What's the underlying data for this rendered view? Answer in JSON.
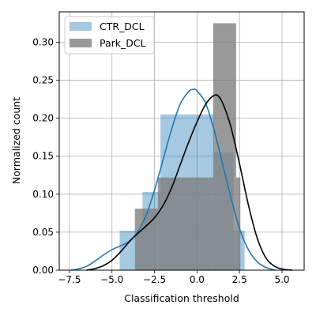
{
  "chart_data": {
    "type": "bar",
    "title": "",
    "xlabel": "Classification threshold",
    "ylabel": "Normalized count",
    "xlim": [
      -8.1,
      6.3
    ],
    "ylim": [
      0,
      0.34
    ],
    "grid": true,
    "legend_position": "top-left",
    "xticks": [
      -7.5,
      -5.0,
      -2.5,
      0.0,
      2.5,
      5.0
    ],
    "xtick_labels": [
      "−7.5",
      "−5.0",
      "−2.5",
      "0.0",
      "2.5",
      "5.0"
    ],
    "yticks": [
      0.0,
      0.05,
      0.1,
      0.15,
      0.2,
      0.25,
      0.3
    ],
    "ytick_labels": [
      "0.00",
      "0.05",
      "0.10",
      "0.15",
      "0.20",
      "0.25",
      "0.30"
    ],
    "series": [
      {
        "name": "CTR_DCL",
        "color": "#1f77b4",
        "bar_alpha": 0.4,
        "bins": [
          {
            "x0": -4.55,
            "x1": -3.2,
            "value": 0.052
          },
          {
            "x0": -3.2,
            "x1": -2.15,
            "value": 0.103
          },
          {
            "x0": -2.15,
            "x1": 1.0,
            "value": 0.205
          },
          {
            "x0": 1.0,
            "x1": 2.15,
            "value": 0.155
          },
          {
            "x0": 2.15,
            "x1": 2.8,
            "value": 0.052
          }
        ],
        "kde_points": [
          [
            -7.4,
            0.0
          ],
          [
            -7.0,
            0.0015
          ],
          [
            -6.5,
            0.005
          ],
          [
            -6.0,
            0.012
          ],
          [
            -5.5,
            0.02
          ],
          [
            -5.0,
            0.027
          ],
          [
            -4.5,
            0.032
          ],
          [
            -4.0,
            0.038
          ],
          [
            -3.5,
            0.05
          ],
          [
            -3.0,
            0.072
          ],
          [
            -2.5,
            0.105
          ],
          [
            -2.0,
            0.145
          ],
          [
            -1.5,
            0.185
          ],
          [
            -1.0,
            0.218
          ],
          [
            -0.5,
            0.235
          ],
          [
            -0.2,
            0.238
          ],
          [
            0.0,
            0.236
          ],
          [
            0.5,
            0.22
          ],
          [
            1.0,
            0.185
          ],
          [
            1.5,
            0.14
          ],
          [
            2.0,
            0.095
          ],
          [
            2.5,
            0.055
          ],
          [
            3.0,
            0.028
          ],
          [
            3.5,
            0.012
          ],
          [
            4.0,
            0.004
          ],
          [
            4.6,
            0.0
          ]
        ]
      },
      {
        "name": "Park_DCL",
        "color": "#000000",
        "bar_color": "#808080",
        "bar_alpha": 0.8,
        "bins": [
          {
            "x0": -3.65,
            "x1": -2.3,
            "value": 0.081
          },
          {
            "x0": -2.3,
            "x1": 0.95,
            "value": 0.122
          },
          {
            "x0": 0.95,
            "x1": 2.3,
            "value": 0.325
          },
          {
            "x0": 2.3,
            "x1": 2.55,
            "value": 0.122
          }
        ],
        "kde_points": [
          [
            -6.5,
            0.0
          ],
          [
            -6.0,
            0.002
          ],
          [
            -5.5,
            0.006
          ],
          [
            -5.0,
            0.013
          ],
          [
            -4.5,
            0.024
          ],
          [
            -4.0,
            0.037
          ],
          [
            -3.5,
            0.048
          ],
          [
            -3.0,
            0.058
          ],
          [
            -2.5,
            0.069
          ],
          [
            -2.0,
            0.085
          ],
          [
            -1.5,
            0.108
          ],
          [
            -1.0,
            0.138
          ],
          [
            -0.5,
            0.168
          ],
          [
            0.0,
            0.195
          ],
          [
            0.5,
            0.218
          ],
          [
            1.0,
            0.23
          ],
          [
            1.3,
            0.228
          ],
          [
            1.6,
            0.215
          ],
          [
            2.0,
            0.188
          ],
          [
            2.5,
            0.14
          ],
          [
            3.0,
            0.088
          ],
          [
            3.5,
            0.045
          ],
          [
            4.0,
            0.018
          ],
          [
            4.5,
            0.006
          ],
          [
            5.0,
            0.0015
          ],
          [
            5.6,
            0.0
          ]
        ]
      }
    ]
  }
}
